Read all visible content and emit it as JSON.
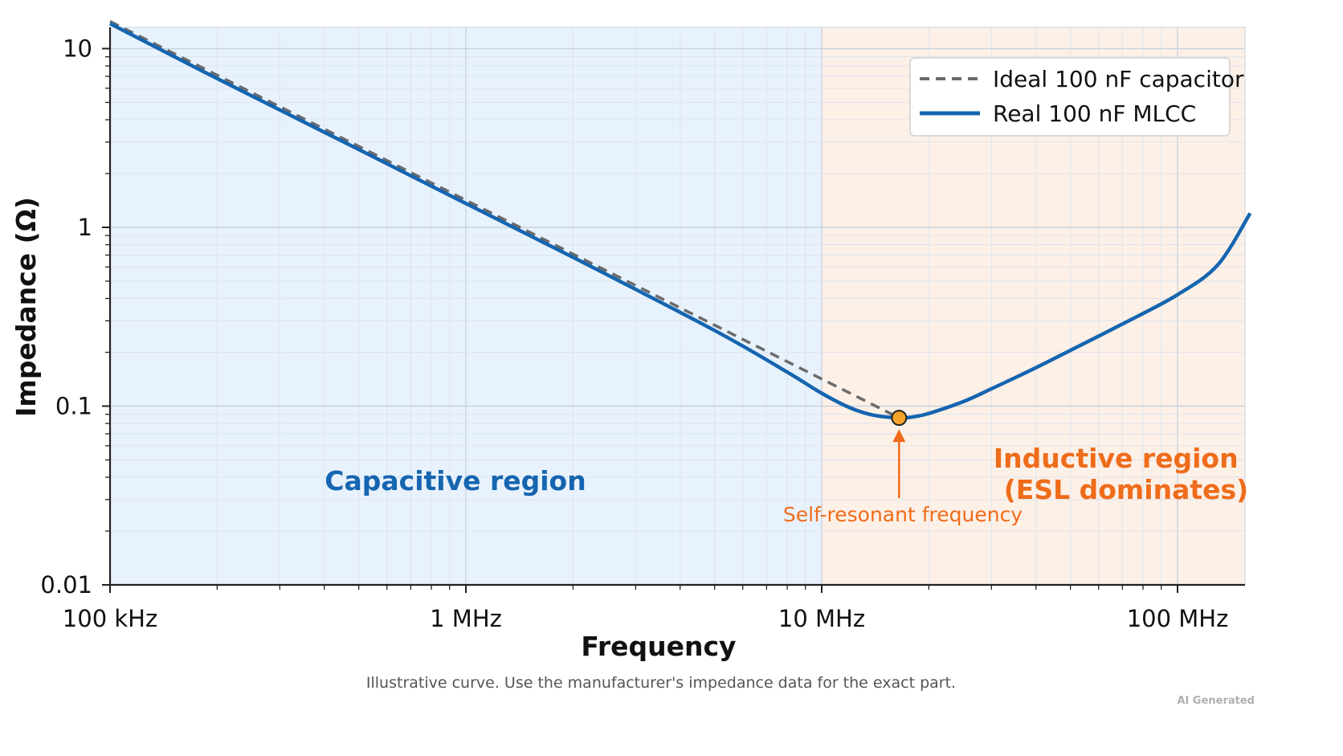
{
  "chart_data": {
    "type": "line",
    "x_scale": "log",
    "y_scale": "log",
    "xlabel": "Frequency",
    "ylabel": "Impedance (Ω)",
    "xlim": [
      100000,
      160000000
    ],
    "ylim": [
      0.01,
      18
    ],
    "x_ticks": [
      {
        "value": 100000,
        "label": "100 kHz"
      },
      {
        "value": 1000000,
        "label": "1 MHz"
      },
      {
        "value": 10000000,
        "label": "10 MHz"
      },
      {
        "value": 100000000,
        "label": "100 MHz"
      }
    ],
    "y_ticks": [
      {
        "value": 10,
        "label": "10"
      },
      {
        "value": 1,
        "label": "1"
      },
      {
        "value": 0.1,
        "label": "0.1"
      },
      {
        "value": 0.01,
        "label": "0.01"
      }
    ],
    "grid": true,
    "legend_position": "top-right",
    "series": [
      {
        "name": "Ideal 100 nF capacitor",
        "style": "dashed",
        "color": "#6b6b6b",
        "x": [
          100000,
          16500000
        ],
        "y": [
          14.2,
          0.086
        ]
      },
      {
        "name": "Real 100 nF MLCC",
        "style": "solid",
        "color": "#1565b0",
        "x": [
          100000,
          200000,
          500000,
          1000000,
          2000000,
          5000000,
          8000000,
          10000000,
          12000000,
          14000000,
          16500000,
          18000000,
          20000000,
          25000000,
          30000000,
          40000000,
          50000000,
          70000000,
          100000000,
          130000000,
          160000000
        ],
        "y": [
          13.8,
          6.8,
          2.73,
          1.36,
          0.68,
          0.265,
          0.155,
          0.118,
          0.098,
          0.089,
          0.086,
          0.087,
          0.091,
          0.106,
          0.125,
          0.164,
          0.205,
          0.288,
          0.42,
          0.62,
          1.2
        ]
      }
    ],
    "regions": [
      {
        "label": "Capacitive region",
        "x_range": [
          100000,
          10000000
        ],
        "color": "#e8f2fd"
      },
      {
        "label": "Inductive region\n(ESL dominates)",
        "x_range": [
          10000000,
          160000000
        ],
        "color": "#fdf0e7"
      }
    ],
    "marker": {
      "x": 16500000,
      "y": 0.086,
      "color": "#f5a32a"
    },
    "annotations": [
      {
        "text": "Self-resonant frequency",
        "color": "#ef6c1a"
      }
    ]
  },
  "colors": {
    "capacitive_text": "#1565b0",
    "inductive_text": "#ef6c1a",
    "annotation": "#ef6c1a"
  },
  "caption": "Illustrative curve. Use the manufacturer's impedance data for the exact part.",
  "watermark": "AI Generated"
}
